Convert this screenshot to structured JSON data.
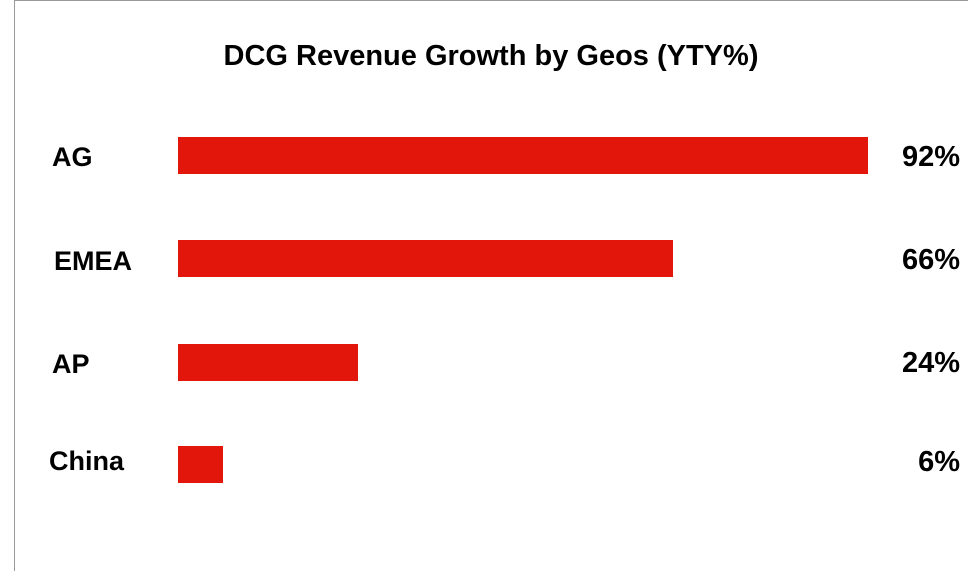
{
  "chart_data": {
    "type": "bar",
    "orientation": "horizontal",
    "title": "DCG Revenue Growth by Geos (YTY%)",
    "categories": [
      "AG",
      "EMEA",
      "AP",
      "China"
    ],
    "values": [
      92,
      66,
      24,
      6
    ],
    "value_labels": [
      "92%",
      "66%",
      "24%",
      "6%"
    ],
    "xlim": [
      0,
      92
    ],
    "bar_color": "#e3160b",
    "grid": false,
    "legend": "none"
  }
}
